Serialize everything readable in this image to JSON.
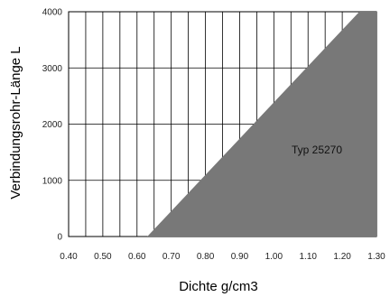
{
  "chart_data": {
    "type": "area",
    "xlabel": "Dichte g/cm3",
    "ylabel": "Verbindungsrohr-Länge L",
    "xlim": [
      0.4,
      1.3
    ],
    "ylim": [
      0,
      4000
    ],
    "x_ticks": [
      "0.40",
      "0.50",
      "0.60",
      "0.70",
      "0.80",
      "0.90",
      "1.00",
      "1.10",
      "1.20",
      "1.30"
    ],
    "y_ticks": [
      "0",
      "1000",
      "2000",
      "3000",
      "4000"
    ],
    "x_grid_step": 0.05,
    "y_grid_step": 1000,
    "grid": true,
    "series": [
      {
        "name": "Typ 25270",
        "boundary": [
          {
            "x": 0.63,
            "y": 0
          },
          {
            "x": 1.25,
            "y": 4000
          }
        ],
        "fill": "right-of-boundary",
        "color": "#787878"
      }
    ]
  }
}
